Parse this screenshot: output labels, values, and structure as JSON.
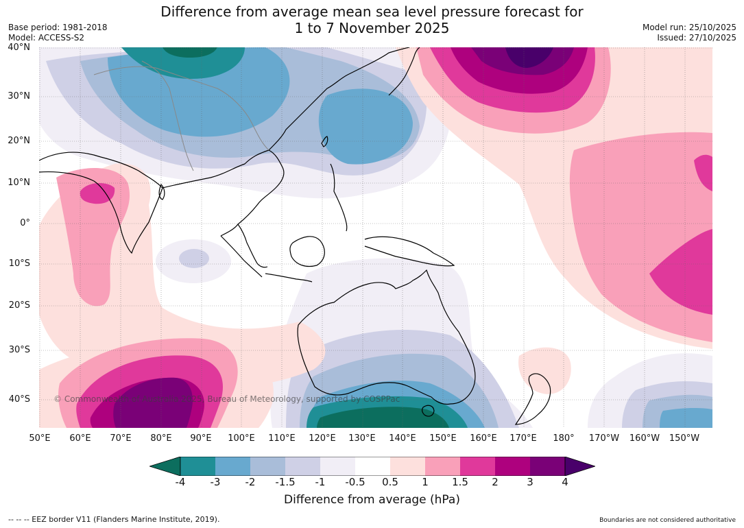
{
  "title": {
    "line1": "Difference from average mean sea level pressure forecast for",
    "line2": "1 to 7 November 2025"
  },
  "meta": {
    "base_period": "Base period: 1981-2018",
    "model": "Model: ACCESS-S2",
    "model_run": "Model run: 25/10/2025",
    "issued": "Issued: 27/10/2025"
  },
  "axes": {
    "lat_labels": [
      "40°N",
      "30°N",
      "20°N",
      "10°N",
      "0°",
      "10°S",
      "20°S",
      "30°S",
      "40°S"
    ],
    "lon_labels": [
      "50°E",
      "60°E",
      "70°E",
      "80°E",
      "90°E",
      "100°E",
      "110°E",
      "120°E",
      "130°E",
      "140°E",
      "150°E",
      "160°E",
      "170°E",
      "180°",
      "170°W",
      "160°W",
      "150°W"
    ]
  },
  "copyright": "© Commonwealth of Australia 2025, Bureau of Meteorology, supported by COSPPac",
  "legend": {
    "title": "Difference from average (hPa)",
    "labels": [
      "-4",
      "-3",
      "-2",
      "-1.5",
      "-1",
      "-0.5",
      "0.5",
      "1",
      "1.5",
      "2",
      "3",
      "4"
    ],
    "colors": {
      "below_-4": "#0c6e5e",
      "-4_-3": "#1f8f96",
      "-3_-2": "#68a9cf",
      "-2_-1.5": "#a9bdd9",
      "-1.5_-1": "#cfd0e6",
      "-1_-0.5": "#f1eef6",
      "-0.5_0.5": "#ffffff",
      "0.5_1": "#fde0dd",
      "1_1.5": "#f9a0b9",
      "1.5_2": "#e0399b",
      "2_3": "#ae017e",
      "3_4": "#7a0177",
      "above_4": "#49006a"
    }
  },
  "footer": {
    "eez": "--  --  -- EEZ border V11 (Flanders Marine Institute, 2019).",
    "boundaries": "Boundaries are not considered authoritative"
  }
}
